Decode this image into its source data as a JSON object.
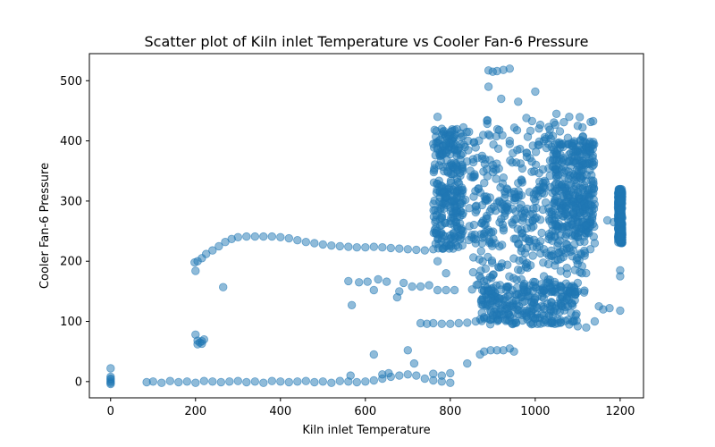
{
  "chart_data": {
    "type": "scatter",
    "title": "Scatter plot of Kiln inlet Temperature vs Cooler Fan-6 Pressure",
    "xlabel": "Kiln inlet Temperature",
    "ylabel": "Cooler Fan-6 Pressure",
    "xlim": [
      -50,
      1255
    ],
    "ylim": [
      -27,
      545
    ],
    "xticks": [
      0,
      200,
      400,
      600,
      800,
      1000,
      1200
    ],
    "yticks": [
      0,
      100,
      200,
      300,
      400,
      500
    ],
    "grid": false,
    "legend": "none",
    "marker_color": "#1f77b4",
    "marker_alpha": 0.5,
    "series": [
      {
        "points": [
          [
            0,
            0
          ],
          [
            0,
            3
          ],
          [
            0,
            -2
          ],
          [
            0,
            5
          ],
          [
            0,
            22
          ],
          [
            0,
            8
          ],
          [
            0,
            -4
          ],
          [
            85,
            -1
          ],
          [
            100,
            0
          ],
          [
            120,
            -2
          ],
          [
            140,
            1
          ],
          [
            160,
            -1
          ],
          [
            180,
            0
          ],
          [
            200,
            -2
          ],
          [
            220,
            1
          ],
          [
            240,
            0
          ],
          [
            260,
            -1
          ],
          [
            280,
            0
          ],
          [
            300,
            1
          ],
          [
            320,
            -1
          ],
          [
            340,
            0
          ],
          [
            360,
            -2
          ],
          [
            380,
            1
          ],
          [
            400,
            0
          ],
          [
            420,
            -1
          ],
          [
            440,
            0
          ],
          [
            460,
            1
          ],
          [
            480,
            -1
          ],
          [
            500,
            0
          ],
          [
            520,
            -2
          ],
          [
            540,
            1
          ],
          [
            560,
            0
          ],
          [
            580,
            -1
          ],
          [
            600,
            0
          ],
          [
            620,
            2
          ],
          [
            640,
            5
          ],
          [
            660,
            8
          ],
          [
            680,
            10
          ],
          [
            700,
            12
          ],
          [
            720,
            10
          ],
          [
            740,
            5
          ],
          [
            760,
            2
          ],
          [
            780,
            0
          ],
          [
            800,
            -2
          ],
          [
            565,
            10
          ],
          [
            620,
            45
          ],
          [
            640,
            12
          ],
          [
            655,
            14
          ],
          [
            700,
            52
          ],
          [
            715,
            30
          ],
          [
            760,
            13
          ],
          [
            780,
            10
          ],
          [
            800,
            14
          ],
          [
            840,
            30
          ],
          [
            198,
            198
          ],
          [
            200,
            184
          ],
          [
            205,
            200
          ],
          [
            215,
            205
          ],
          [
            225,
            212
          ],
          [
            240,
            218
          ],
          [
            255,
            225
          ],
          [
            270,
            232
          ],
          [
            285,
            237
          ],
          [
            300,
            240
          ],
          [
            320,
            241
          ],
          [
            340,
            241
          ],
          [
            360,
            241
          ],
          [
            380,
            241
          ],
          [
            400,
            240
          ],
          [
            420,
            238
          ],
          [
            440,
            235
          ],
          [
            460,
            232
          ],
          [
            480,
            230
          ],
          [
            500,
            228
          ],
          [
            520,
            226
          ],
          [
            540,
            225
          ],
          [
            560,
            224
          ],
          [
            580,
            223
          ],
          [
            600,
            223
          ],
          [
            620,
            224
          ],
          [
            640,
            223
          ],
          [
            660,
            222
          ],
          [
            680,
            221
          ],
          [
            700,
            220
          ],
          [
            720,
            219
          ],
          [
            740,
            218
          ],
          [
            265,
            157
          ],
          [
            568,
            127
          ],
          [
            560,
            167
          ],
          [
            585,
            165
          ],
          [
            605,
            166
          ],
          [
            630,
            170
          ],
          [
            650,
            166
          ],
          [
            690,
            164
          ],
          [
            710,
            158
          ],
          [
            730,
            158
          ],
          [
            750,
            160
          ],
          [
            770,
            152
          ],
          [
            790,
            152
          ],
          [
            810,
            152
          ],
          [
            620,
            152
          ],
          [
            680,
            150
          ],
          [
            675,
            140
          ],
          [
            200,
            78
          ],
          [
            205,
            68
          ],
          [
            210,
            65
          ],
          [
            215,
            67
          ],
          [
            220,
            70
          ],
          [
            205,
            62
          ],
          [
            215,
            63
          ],
          [
            730,
            97
          ],
          [
            745,
            96
          ],
          [
            760,
            97
          ],
          [
            780,
            96
          ],
          [
            800,
            96
          ],
          [
            820,
            97
          ],
          [
            840,
            98
          ],
          [
            860,
            100
          ],
          [
            880,
            105
          ],
          [
            900,
            110
          ],
          [
            920,
            112
          ],
          [
            940,
            110
          ],
          [
            960,
            112
          ],
          [
            980,
            108
          ],
          [
            1000,
            105
          ],
          [
            1020,
            110
          ],
          [
            1040,
            100
          ],
          [
            1060,
            98
          ],
          [
            1080,
            95
          ],
          [
            1100,
            92
          ],
          [
            1120,
            90
          ],
          [
            1140,
            100
          ],
          [
            1160,
            120
          ],
          [
            1175,
            122
          ],
          [
            870,
            45
          ],
          [
            880,
            50
          ],
          [
            895,
            52
          ],
          [
            910,
            52
          ],
          [
            925,
            52
          ],
          [
            940,
            55
          ],
          [
            950,
            50
          ],
          [
            890,
            517
          ],
          [
            900,
            515
          ],
          [
            910,
            516
          ],
          [
            925,
            518
          ],
          [
            940,
            520
          ],
          [
            890,
            490
          ],
          [
            1000,
            482
          ],
          [
            920,
            470
          ],
          [
            1050,
            445
          ],
          [
            1080,
            440
          ],
          [
            960,
            465
          ],
          [
            1100,
            425
          ],
          [
            770,
            440
          ],
          [
            780,
            420
          ],
          [
            800,
            410
          ],
          [
            760,
            395
          ],
          [
            790,
            380
          ],
          [
            810,
            300
          ],
          [
            830,
            280
          ],
          [
            850,
            240
          ],
          [
            780,
            260
          ],
          [
            770,
            200
          ],
          [
            760,
            220
          ],
          [
            790,
            180
          ],
          [
            830,
            250
          ],
          [
            880,
            330
          ],
          [
            920,
            270
          ],
          [
            960,
            330
          ],
          [
            1000,
            300
          ],
          [
            1040,
            260
          ],
          [
            1080,
            310
          ],
          [
            1100,
            240
          ],
          [
            1120,
            260
          ],
          [
            1130,
            220
          ],
          [
            1100,
            150
          ],
          [
            1110,
            180
          ],
          [
            1060,
            370
          ],
          [
            1020,
            400
          ],
          [
            980,
            380
          ],
          [
            940,
            400
          ],
          [
            900,
            360
          ],
          [
            860,
            230
          ],
          [
            1140,
            230
          ],
          [
            1200,
            320
          ],
          [
            1200,
            300
          ],
          [
            1200,
            285
          ],
          [
            1200,
            265
          ],
          [
            1200,
            240
          ],
          [
            1200,
            185
          ],
          [
            1200,
            175
          ],
          [
            1200,
            118
          ],
          [
            1170,
            268
          ],
          [
            1185,
            265
          ],
          [
            1115,
            148
          ],
          [
            1150,
            125
          ],
          [
            1040,
            150
          ],
          [
            1060,
            130
          ]
        ],
        "clusters": [
          {
            "x_range": [
              760,
              830
            ],
            "y_range": [
              220,
              420
            ]
          },
          {
            "x_range": [
              820,
              1140
            ],
            "y_range": [
              230,
              440
            ]
          },
          {
            "x_range": [
              850,
              1120
            ],
            "y_range": [
              150,
              330
            ]
          },
          {
            "x_range": [
              870,
              1100
            ],
            "y_range": [
              95,
              160
            ]
          },
          {
            "x_range": [
              1040,
              1140
            ],
            "y_range": [
              240,
              400
            ]
          },
          {
            "x_range": [
              1195,
              1205
            ],
            "y_range": [
              230,
              320
            ]
          }
        ]
      }
    ]
  }
}
